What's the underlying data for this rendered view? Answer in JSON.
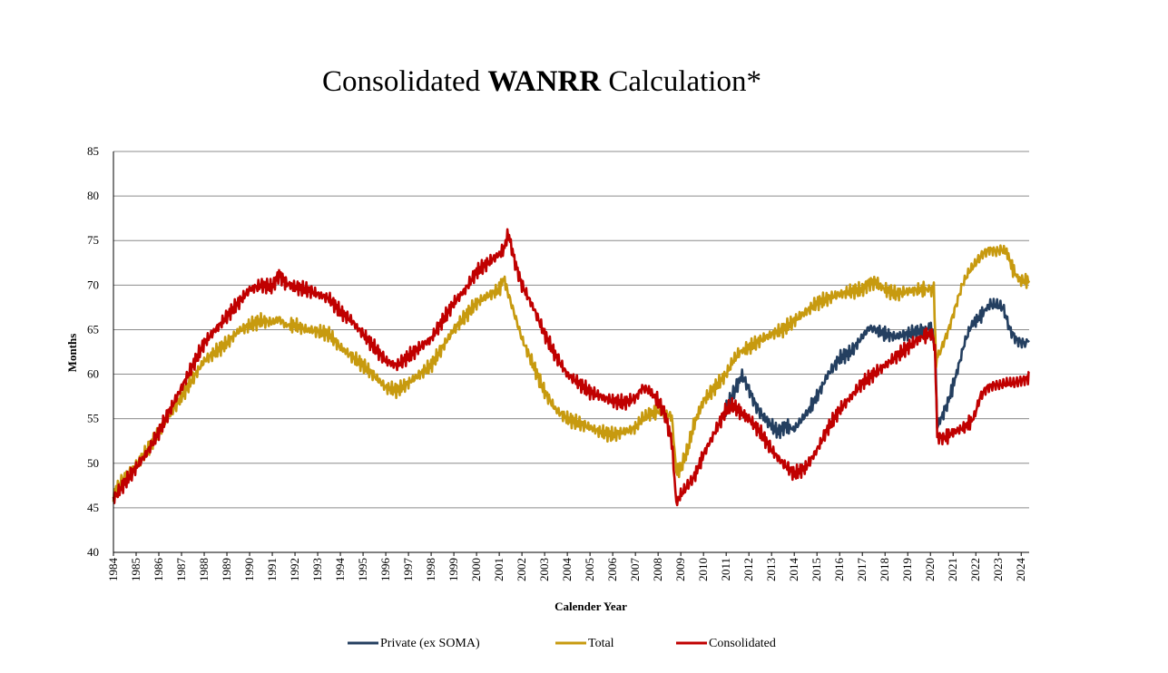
{
  "chart_data": {
    "type": "line",
    "title_parts": {
      "pre": "Consolidated ",
      "bold": "WANRR",
      "post": " Calculation*"
    },
    "xlabel": "Calender Year",
    "ylabel": "Months",
    "ylim": [
      40,
      85
    ],
    "yticks": [
      "40",
      "45",
      "50",
      "55",
      "60",
      "65",
      "70",
      "75",
      "80",
      "85"
    ],
    "xlim": [
      1984,
      2024.35
    ],
    "xticks": [
      "1984",
      "1985",
      "1986",
      "1987",
      "1988",
      "1989",
      "1990",
      "1991",
      "1992",
      "1993",
      "1994",
      "1995",
      "1996",
      "1997",
      "1998",
      "1999",
      "2000",
      "2001",
      "2002",
      "2003",
      "2004",
      "2005",
      "2006",
      "2007",
      "2008",
      "2009",
      "2010",
      "2011",
      "2012",
      "2013",
      "2014",
      "2015",
      "2016",
      "2017",
      "2018",
      "2019",
      "2020",
      "2021",
      "2022",
      "2023",
      "2024"
    ],
    "gridlines": "horizontal",
    "legend_position": "bottom",
    "series": [
      {
        "name": "Private (ex SOMA)",
        "color": "#243f60",
        "x": [
          2010.9,
          2011.2,
          2011.5,
          2011.7,
          2012.0,
          2012.3,
          2012.6,
          2013.0,
          2013.3,
          2013.6,
          2014.0,
          2014.3,
          2014.6,
          2015.0,
          2015.5,
          2016.0,
          2016.5,
          2017.0,
          2017.3,
          2017.6,
          2018.0,
          2018.5,
          2019.0,
          2019.5,
          2019.9,
          2020.1,
          2020.2,
          2020.3,
          2020.5,
          2020.8,
          2021.2,
          2021.5,
          2021.8,
          2022.2,
          2022.6,
          2022.9,
          2023.2,
          2023.5,
          2023.8,
          2024.1,
          2024.35
        ],
        "y": [
          55.5,
          57.2,
          58.8,
          59.9,
          58.3,
          56.5,
          55.3,
          54.2,
          53.5,
          54.2,
          53.8,
          54.8,
          55.8,
          57.5,
          60.0,
          61.8,
          62.5,
          64.2,
          65.2,
          65.0,
          64.5,
          64.2,
          64.5,
          64.8,
          65.2,
          64.8,
          63.0,
          54.2,
          55.2,
          57.0,
          60.5,
          63.5,
          65.5,
          66.5,
          67.8,
          67.8,
          67.5,
          65.0,
          63.8,
          63.5,
          63.6
        ]
      },
      {
        "name": "Total",
        "color": "#c79a0f",
        "x": [
          1984.0,
          1984.5,
          1985.0,
          1985.5,
          1986.0,
          1986.5,
          1987.0,
          1987.5,
          1988.0,
          1988.5,
          1989.0,
          1989.5,
          1990.0,
          1990.5,
          1991.0,
          1991.3,
          1991.6,
          1992.0,
          1992.5,
          1993.0,
          1993.5,
          1994.0,
          1994.5,
          1995.0,
          1995.5,
          1996.0,
          1996.5,
          1997.0,
          1997.5,
          1998.0,
          1998.5,
          1999.0,
          1999.5,
          2000.0,
          2000.5,
          2001.0,
          2001.2,
          2001.4,
          2001.7,
          2002.0,
          2002.5,
          2003.0,
          2003.5,
          2004.0,
          2004.5,
          2005.0,
          2005.5,
          2006.0,
          2006.5,
          2007.0,
          2007.3,
          2007.6,
          2008.0,
          2008.3,
          2008.6,
          2008.8,
          2009.0,
          2009.3,
          2009.6,
          2010.0,
          2010.5,
          2011.0,
          2011.3,
          2011.6,
          2012.0,
          2012.5,
          2013.0,
          2013.5,
          2014.0,
          2014.5,
          2015.0,
          2015.5,
          2016.0,
          2016.5,
          2017.0,
          2017.3,
          2017.6,
          2018.0,
          2018.5,
          2019.0,
          2019.5,
          2019.9,
          2020.15,
          2020.25,
          2020.5,
          2020.8,
          2021.1,
          2021.4,
          2021.7,
          2022.0,
          2022.3,
          2022.6,
          2022.9,
          2023.2,
          2023.4,
          2023.6,
          2023.8,
          2024.0,
          2024.35
        ],
        "y": [
          46.5,
          48.5,
          49.8,
          51.5,
          53.5,
          55.5,
          57.5,
          59.5,
          61.5,
          62.5,
          63.5,
          64.8,
          65.5,
          66.0,
          65.8,
          66.2,
          65.5,
          65.5,
          65.0,
          64.8,
          64.5,
          63.0,
          62.0,
          61.0,
          59.8,
          58.5,
          58.2,
          59.0,
          60.0,
          61.0,
          63.0,
          65.0,
          66.5,
          68.0,
          68.8,
          69.5,
          70.8,
          69.0,
          66.5,
          64.0,
          61.0,
          58.0,
          56.0,
          55.0,
          54.5,
          54.0,
          53.5,
          53.2,
          53.5,
          54.0,
          55.0,
          55.5,
          55.8,
          55.5,
          55.3,
          49.0,
          49.5,
          51.5,
          54.5,
          57.0,
          58.5,
          60.0,
          61.5,
          62.5,
          63.0,
          63.8,
          64.5,
          65.0,
          66.0,
          67.0,
          68.0,
          68.5,
          69.0,
          69.3,
          69.5,
          70.2,
          70.3,
          69.5,
          69.0,
          69.3,
          69.5,
          69.5,
          69.5,
          61.5,
          63.0,
          65.0,
          67.5,
          70.0,
          71.5,
          72.5,
          73.5,
          74.0,
          73.8,
          74.0,
          73.5,
          72.0,
          71.0,
          70.5,
          70.5
        ]
      },
      {
        "name": "Consolidated",
        "color": "#c00000",
        "x": [
          1984.0,
          1984.5,
          1985.0,
          1985.5,
          1986.0,
          1986.5,
          1987.0,
          1987.5,
          1988.0,
          1988.5,
          1989.0,
          1989.5,
          1990.0,
          1990.5,
          1991.0,
          1991.3,
          1991.6,
          1992.0,
          1992.5,
          1993.0,
          1993.5,
          1994.0,
          1994.5,
          1995.0,
          1995.5,
          1996.0,
          1996.5,
          1997.0,
          1997.5,
          1998.0,
          1998.5,
          1999.0,
          1999.5,
          2000.0,
          2000.5,
          2001.0,
          2001.2,
          2001.4,
          2001.7,
          2002.0,
          2002.5,
          2003.0,
          2003.5,
          2004.0,
          2004.5,
          2005.0,
          2005.5,
          2006.0,
          2006.5,
          2007.0,
          2007.3,
          2007.6,
          2008.0,
          2008.3,
          2008.6,
          2008.8,
          2009.0,
          2009.3,
          2009.6,
          2010.0,
          2010.5,
          2011.0,
          2011.3,
          2011.6,
          2012.0,
          2012.5,
          2013.0,
          2013.5,
          2014.0,
          2014.5,
          2015.0,
          2015.5,
          2016.0,
          2016.5,
          2017.0,
          2017.5,
          2018.0,
          2018.5,
          2019.0,
          2019.5,
          2019.9,
          2020.1,
          2020.2,
          2020.3,
          2020.6,
          2021.0,
          2021.5,
          2021.9,
          2022.2,
          2022.5,
          2022.8,
          2023.1,
          2023.4,
          2023.7,
          2024.0,
          2024.3,
          2024.35
        ],
        "y": [
          46.0,
          47.8,
          49.5,
          51.3,
          53.5,
          56.0,
          58.5,
          61.0,
          63.5,
          65.0,
          66.5,
          68.0,
          69.5,
          70.0,
          69.8,
          71.2,
          70.2,
          69.8,
          69.5,
          69.0,
          68.5,
          67.0,
          66.0,
          64.5,
          63.0,
          61.5,
          61.0,
          62.0,
          63.0,
          64.0,
          66.0,
          68.0,
          69.5,
          71.5,
          72.5,
          73.5,
          74.0,
          75.8,
          72.5,
          70.0,
          67.5,
          64.5,
          62.0,
          60.0,
          59.0,
          58.0,
          57.5,
          57.0,
          56.8,
          57.3,
          58.5,
          58.2,
          57.0,
          55.5,
          52.5,
          45.5,
          46.5,
          47.5,
          48.5,
          51.0,
          53.5,
          56.0,
          56.5,
          55.8,
          55.0,
          53.5,
          51.5,
          50.0,
          48.8,
          49.5,
          51.5,
          54.0,
          56.0,
          57.5,
          59.0,
          60.0,
          61.0,
          62.0,
          63.0,
          64.0,
          64.5,
          64.5,
          63.0,
          53.0,
          52.8,
          53.5,
          54.0,
          55.0,
          57.5,
          58.5,
          58.8,
          58.8,
          59.0,
          59.0,
          59.3,
          59.5,
          60.3
        ]
      }
    ]
  }
}
